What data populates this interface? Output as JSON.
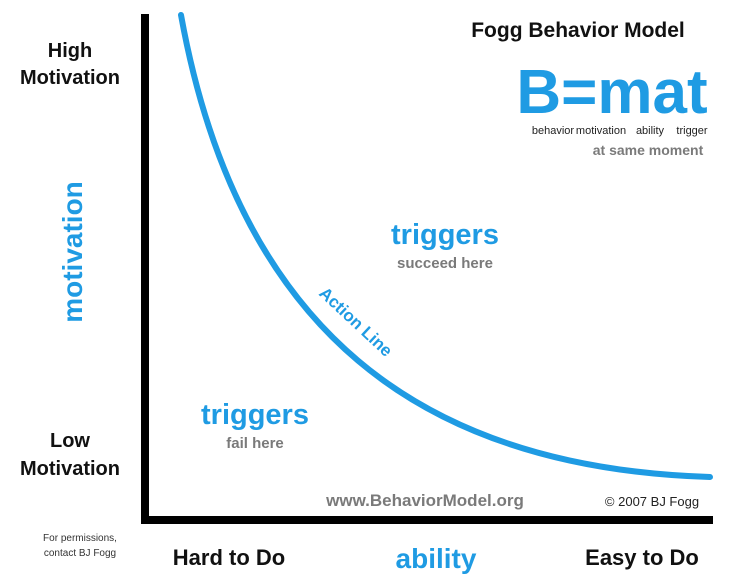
{
  "title": "Fogg Behavior Model",
  "formula": {
    "text": "B=mat",
    "terms": [
      "behavior",
      "motivation",
      "ability",
      "trigger"
    ],
    "note": "at same moment"
  },
  "regions": [
    {
      "label": "triggers",
      "sub": "succeed here"
    },
    {
      "label": "triggers",
      "sub": "fail here"
    }
  ],
  "curve_label": "Action Line",
  "y_axis": {
    "label": "motivation",
    "high": [
      "High",
      "Motivation"
    ],
    "low": [
      "Low",
      "Motivation"
    ]
  },
  "x_axis": {
    "label": "ability",
    "low": "Hard to Do",
    "high": "Easy to Do"
  },
  "website": "www.BehaviorModel.org",
  "copyright": "© 2007 BJ Fogg",
  "permissions": [
    "For permissions,",
    "contact BJ Fogg"
  ]
}
